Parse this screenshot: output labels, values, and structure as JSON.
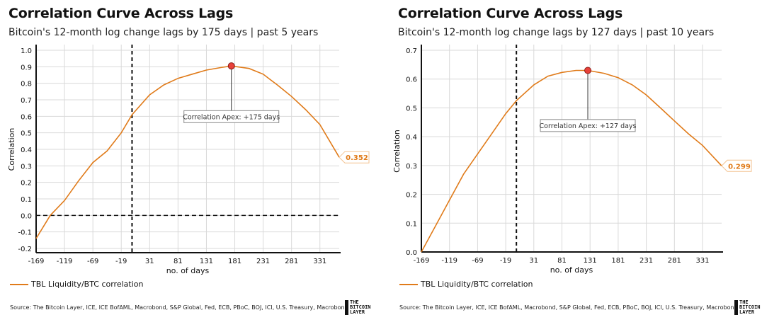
{
  "colors": {
    "line": "#e07b1a",
    "apex": "#e8413a",
    "grid": "#d9d9d9"
  },
  "brand_logo": "THE BITCOIN LAYER",
  "chart_data": [
    {
      "type": "line",
      "title": "Correlation Curve Across Lags",
      "subtitle": "Bitcoin's 12-month log change lags by 175 days | past 5 years",
      "xlabel": "no. of days",
      "ylabel": "Correlation",
      "xlim": [
        -169,
        365
      ],
      "ylim": [
        -0.2,
        1.0
      ],
      "xticks": [
        "-169",
        "-119",
        "-69",
        "-19",
        "31",
        "81",
        "131",
        "181",
        "231",
        "281",
        "331"
      ],
      "yticks": [
        "-0.2",
        "-0.1",
        "0.0",
        "0.1",
        "0.2",
        "0.3",
        "0.4",
        "0.5",
        "0.6",
        "0.7",
        "0.8",
        "0.9",
        "1.0"
      ],
      "legend": "TBL Liquidity/BTC correlation",
      "series": [
        {
          "name": "TBL Liquidity/BTC correlation",
          "x": [
            -169,
            -144,
            -119,
            -94,
            -69,
            -44,
            -19,
            0,
            31,
            56,
            81,
            106,
            131,
            156,
            175,
            206,
            231,
            256,
            281,
            306,
            331,
            365
          ],
          "y": [
            -0.14,
            0.0,
            0.09,
            0.21,
            0.32,
            0.39,
            0.5,
            0.61,
            0.73,
            0.79,
            0.83,
            0.855,
            0.88,
            0.895,
            0.905,
            0.89,
            0.855,
            0.79,
            0.72,
            0.64,
            0.55,
            0.352
          ]
        }
      ],
      "apex": {
        "x": 175,
        "y": 0.905,
        "label": "Correlation Apex: +175 days",
        "label_y": 0.6
      },
      "last_value_label": "0.352",
      "reference_lines": {
        "vertical_x": 0,
        "horizontal_y": 0
      },
      "source": "Source: The Bitcoin Layer, ICE, ICE BofAML, Macrobond, S&P Global, Fed, ECB, PBoC, BOJ, ICI, U.S. Treasury, Macrobond"
    },
    {
      "type": "line",
      "title": "Correlation Curve Across Lags",
      "subtitle": "Bitcoin's 12-month log change lags by 127 days | past 10 years",
      "xlabel": "no. of days",
      "ylabel": "Correlation",
      "xlim": [
        -169,
        365
      ],
      "ylim": [
        0.0,
        0.7
      ],
      "xticks": [
        "-169",
        "-119",
        "-69",
        "-19",
        "31",
        "81",
        "131",
        "181",
        "231",
        "281",
        "331"
      ],
      "yticks": [
        "0.0",
        "0.1",
        "0.2",
        "0.3",
        "0.4",
        "0.5",
        "0.6",
        "0.7"
      ],
      "legend": "TBL Liquidity/BTC correlation",
      "series": [
        {
          "name": "TBL Liquidity/BTC correlation",
          "x": [
            -169,
            -144,
            -119,
            -94,
            -69,
            -44,
            -19,
            0,
            31,
            56,
            81,
            106,
            127,
            156,
            181,
            206,
            231,
            256,
            281,
            306,
            331,
            365
          ],
          "y": [
            0.0,
            0.09,
            0.18,
            0.27,
            0.34,
            0.41,
            0.48,
            0.525,
            0.58,
            0.61,
            0.623,
            0.63,
            0.63,
            0.62,
            0.605,
            0.58,
            0.545,
            0.5,
            0.455,
            0.41,
            0.37,
            0.299
          ]
        }
      ],
      "apex": {
        "x": 127,
        "y": 0.63,
        "label": "Correlation Apex: +127 days",
        "label_y": 0.44
      },
      "last_value_label": "0.299",
      "reference_lines": {
        "vertical_x": 0,
        "horizontal_y": 0
      },
      "source": "Source: The Bitcoin Layer, ICE, ICE BofAML, Macrobond, S&P Global, Fed, ECB, PBoC, BOJ, ICI, U.S. Treasury, Macrobond"
    }
  ]
}
